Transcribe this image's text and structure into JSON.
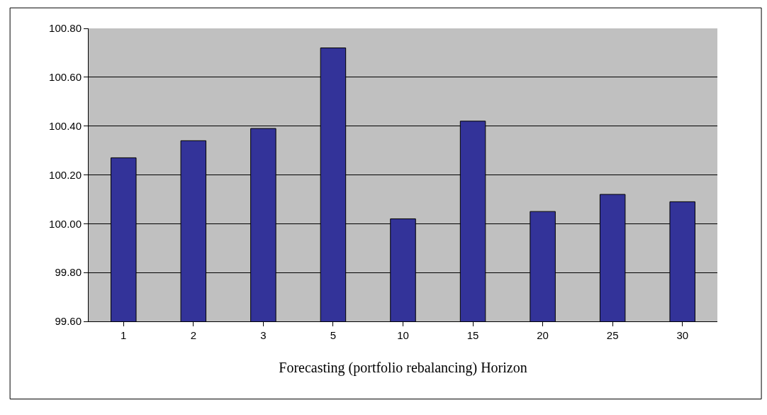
{
  "chart_data": {
    "type": "bar",
    "xlabel": "Forecasting (portfolio rebalancing) Horizon",
    "categories": [
      "1",
      "2",
      "3",
      "5",
      "10",
      "15",
      "20",
      "25",
      "30"
    ],
    "values": [
      100.27,
      100.34,
      100.39,
      100.72,
      100.02,
      100.42,
      100.05,
      100.12,
      100.09
    ],
    "color": "#333399",
    "ylim": [
      99.6,
      100.8
    ],
    "yticks": [
      {
        "value": 99.6,
        "label": "99.60"
      },
      {
        "value": 99.8,
        "label": "99.80"
      },
      {
        "value": 100.0,
        "label": "100.00"
      },
      {
        "value": 100.2,
        "label": "100.20"
      },
      {
        "value": 100.4,
        "label": "100.40"
      },
      {
        "value": 100.6,
        "label": "100.60"
      },
      {
        "value": 100.8,
        "label": "100.80"
      }
    ],
    "grid": "y"
  }
}
